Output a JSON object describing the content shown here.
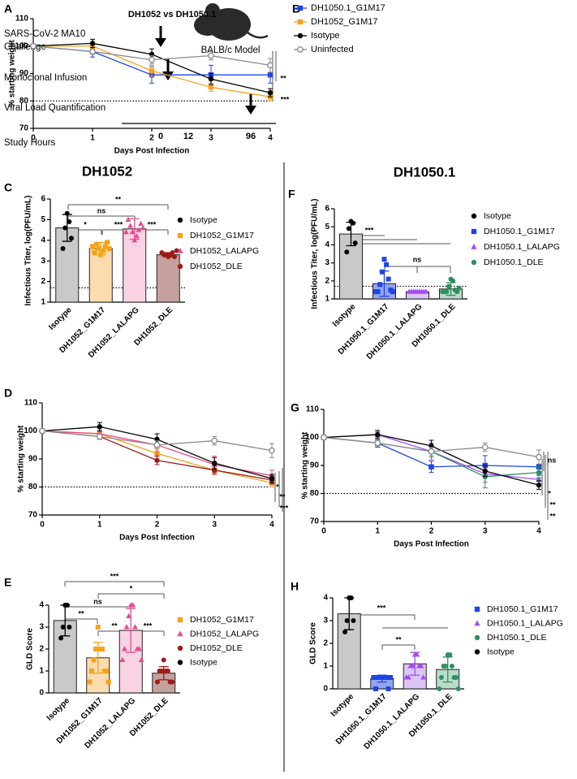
{
  "schematic": {
    "panel_label": "A",
    "challenge": [
      "SARS-CoV-2 MA10",
      "Challenge"
    ],
    "infusion": "Monoclonal Infusion",
    "quantification": "Viral Load Quantification",
    "axis_label": "Study Hours",
    "hours": [
      0,
      12,
      96
    ],
    "model": "BALB/c Model"
  },
  "sections": [
    "DH1052",
    "DH1050.1"
  ],
  "chart_data": [
    {
      "type": "line",
      "panel_label": "B",
      "title": "DH1052 vs DH1050.1",
      "xlabel": "Days Post Infection",
      "ylabel": "% starting weight",
      "x": [
        0,
        1,
        2,
        3,
        4
      ],
      "xlim": [
        0,
        4
      ],
      "xticks": [
        0,
        1,
        2,
        3,
        4
      ],
      "ylim": [
        70,
        110
      ],
      "yticks": [
        70,
        80,
        90,
        100,
        110
      ],
      "reference_line": 80,
      "series": [
        {
          "name": "DH1050.1_G1M17",
          "color": "#1f45e6",
          "marker": "square",
          "values": [
            100,
            98,
            89.5,
            89.5,
            89.5
          ],
          "errors": [
            0,
            2,
            3,
            3.5,
            3
          ]
        },
        {
          "name": "DH1052_G1M17",
          "color": "#f7a21b",
          "marker": "square",
          "values": [
            100,
            100,
            91,
            85,
            81.5
          ],
          "errors": [
            0,
            1,
            2,
            1.5,
            1.5
          ]
        },
        {
          "name": "Isotype",
          "color": "#000000",
          "marker": "circle",
          "values": [
            100,
            101,
            97,
            88,
            83
          ],
          "errors": [
            0,
            1.5,
            2,
            2,
            1.5
          ]
        },
        {
          "name": "Uninfected",
          "color": "#8a8a8a",
          "marker": "open-circle",
          "values": [
            100,
            98,
            95,
            96.5,
            93
          ],
          "errors": [
            0,
            1,
            1.5,
            1.5,
            2.5
          ]
        }
      ],
      "annotations": [
        "**",
        "***"
      ]
    },
    {
      "type": "bar",
      "panel_label": "C",
      "ylabel": "Infectious Titer, log(PFU/mL)",
      "categories": [
        "Isotype",
        "DH1052_G1M17",
        "DH1052_LALAPG",
        "DH1052_DLE"
      ],
      "values": [
        4.6,
        3.6,
        4.55,
        3.3
      ],
      "errors": [
        0.65,
        0.3,
        0.5,
        0.1
      ],
      "points": [
        [
          5.3,
          4.9,
          4.6,
          4.1,
          3.6
        ],
        [
          3.3,
          3.5,
          3.6,
          3.7,
          3.8,
          3.9,
          3.4,
          3.6,
          3.7
        ],
        [
          4.0,
          4.2,
          4.4,
          4.5,
          4.7,
          4.8,
          5.0,
          4.6,
          4.4
        ],
        [
          3.2,
          3.3,
          3.3,
          3.4,
          3.3,
          3.2,
          3.4,
          3.5
        ]
      ],
      "colors": [
        "#000000",
        "#f7a21b",
        "#e84a8f",
        "#9e1b1b"
      ],
      "bar_colors": [
        "#c9c9c9",
        "#fcdcae",
        "#f9d2e3",
        "#c4a09e"
      ],
      "markers": [
        "circle",
        "square",
        "triangle",
        "circle"
      ],
      "ylim": [
        1,
        6
      ],
      "yticks": [
        1,
        2,
        3,
        4,
        5,
        6
      ],
      "reference_line": 1.7,
      "annotations": [
        "**",
        "ns",
        "*",
        "***",
        "***"
      ]
    },
    {
      "type": "line",
      "panel_label": "D",
      "xlabel": "Days Post Infection",
      "ylabel": "% starting weight",
      "x": [
        0,
        1,
        2,
        3,
        4
      ],
      "xlim": [
        0,
        4
      ],
      "xticks": [
        0,
        1,
        2,
        3,
        4
      ],
      "ylim": [
        70,
        110
      ],
      "yticks": [
        70,
        80,
        90,
        100,
        110
      ],
      "reference_line": 80,
      "series": [
        {
          "name": "DH1052_G1M17",
          "color": "#f7a21b",
          "marker": "square",
          "values": [
            100,
            99,
            92,
            86,
            81.5
          ],
          "errors": [
            0,
            1.5,
            2,
            1.5,
            1.5
          ]
        },
        {
          "name": "DH1052_LALAPG",
          "color": "#e84a8f",
          "marker": "triangle",
          "values": [
            100,
            99,
            95,
            88,
            84
          ],
          "errors": [
            0,
            1,
            4,
            3,
            2
          ]
        },
        {
          "name": "DH1052_DLE",
          "color": "#9e1b1b",
          "marker": "circle",
          "values": [
            100,
            98,
            89.5,
            86,
            82.5
          ],
          "errors": [
            0,
            1,
            1.5,
            1.5,
            1.5
          ]
        },
        {
          "name": "Isotype",
          "color": "#000000",
          "marker": "circle",
          "values": [
            100,
            101.5,
            97,
            88.5,
            83
          ],
          "errors": [
            0,
            1.5,
            2,
            2,
            1.5
          ]
        },
        {
          "name": "Uninfected",
          "color": "#8a8a8a",
          "marker": "open-circle",
          "values": [
            100,
            98,
            95,
            96.5,
            93
          ],
          "errors": [
            0,
            1,
            1.5,
            1.5,
            2.5
          ]
        }
      ],
      "annotations": [
        "*",
        "**",
        "***"
      ]
    },
    {
      "type": "bar",
      "panel_label": "E",
      "ylabel": "GLD Score",
      "categories": [
        "Isotype",
        "DH1052_G1M17",
        "DH1052_LALAPG",
        "DH1052_DLE"
      ],
      "values": [
        3.3,
        1.6,
        2.85,
        0.9
      ],
      "errors": [
        0.7,
        0.7,
        1.0,
        0.3
      ],
      "points": [
        [
          4,
          4,
          3,
          3,
          2.5
        ],
        [
          3,
          2,
          2,
          2,
          1.5,
          1,
          1,
          1,
          0.5,
          0.5
        ],
        [
          4,
          4,
          3.5,
          3,
          3,
          2,
          2,
          2,
          1.5,
          1.5
        ],
        [
          1.5,
          1,
          1,
          1,
          1,
          0.5,
          0.5,
          0.5
        ]
      ],
      "colors": [
        "#000000",
        "#f7a21b",
        "#e84a8f",
        "#9e1b1b"
      ],
      "bar_colors": [
        "#c9c9c9",
        "#fcdcae",
        "#f9d2e3",
        "#c4a09e"
      ],
      "markers": [
        "circle",
        "square",
        "triangle",
        "circle"
      ],
      "ylim": [
        0,
        4
      ],
      "yticks": [
        0,
        1,
        2,
        3,
        4
      ],
      "annotations": [
        "***",
        "*",
        "ns",
        "**",
        "**",
        "***"
      ]
    },
    {
      "type": "bar",
      "panel_label": "F",
      "ylabel": "Infectious Titer, log(PFU/mL)",
      "categories": [
        "Isotype",
        "DH1050.1_G1M17",
        "DH1050.1_LALAPG",
        "DH1050.1_DLE"
      ],
      "values": [
        4.6,
        1.85,
        1.4,
        1.55
      ],
      "errors": [
        0.65,
        0.7,
        0.05,
        0.35
      ],
      "points": [
        [
          5.3,
          5.2,
          4.9,
          4.1,
          3.6
        ],
        [
          3.2,
          2.9,
          2.5,
          2.1,
          1.8,
          1.5,
          1.4,
          1.4,
          1.4
        ],
        [
          1.4,
          1.4,
          1.4,
          1.4,
          1.4,
          1.4,
          1.4,
          1.4,
          1.4
        ],
        [
          2.1,
          2.0,
          1.7,
          1.5,
          1.4,
          1.4,
          1.4,
          1.6,
          1.4
        ]
      ],
      "colors": [
        "#000000",
        "#1f45e6",
        "#a44cf0",
        "#2f8f62"
      ],
      "bar_colors": [
        "#c9c9c9",
        "#93a6f2",
        "#dcc6f7",
        "#b8dccb"
      ],
      "markers": [
        "circle",
        "square",
        "triangle",
        "circle"
      ],
      "ylim": [
        1,
        6
      ],
      "yticks": [
        1,
        2,
        3,
        4,
        5,
        6
      ],
      "reference_line": 1.7,
      "annotations": [
        "***",
        "ns"
      ]
    },
    {
      "type": "line",
      "panel_label": "G",
      "xlabel": "Days Post Infection",
      "ylabel": "% starting weight",
      "x": [
        0,
        1,
        2,
        3,
        4
      ],
      "xlim": [
        0,
        4
      ],
      "xticks": [
        0,
        1,
        2,
        3,
        4
      ],
      "ylim": [
        70,
        110
      ],
      "yticks": [
        70,
        80,
        90,
        100,
        110
      ],
      "reference_line": 80,
      "series": [
        {
          "name": "DH1050.1_G1M17",
          "color": "#1f45e6",
          "marker": "square",
          "values": [
            100,
            98,
            89.5,
            90,
            89.5
          ],
          "errors": [
            0,
            1.5,
            2,
            3.5,
            3
          ]
        },
        {
          "name": "DH1050.1_LALAPG",
          "color": "#a44cf0",
          "marker": "triangle",
          "values": [
            100,
            101,
            95,
            87,
            85
          ],
          "errors": [
            0,
            1,
            3,
            3,
            2
          ]
        },
        {
          "name": "DH1050.1_DLE",
          "color": "#2f8f62",
          "marker": "circle",
          "values": [
            100,
            98,
            95,
            86,
            87.5
          ],
          "errors": [
            0,
            1,
            2,
            4,
            2
          ]
        },
        {
          "name": "Isotype",
          "color": "#000000",
          "marker": "circle",
          "values": [
            100,
            101,
            97,
            88,
            83
          ],
          "errors": [
            0,
            1.5,
            2,
            2,
            1.5
          ]
        },
        {
          "name": "Uninfected",
          "color": "#8a8a8a",
          "marker": "open-circle",
          "values": [
            100,
            98,
            95,
            96.5,
            93
          ],
          "errors": [
            0,
            1,
            1.5,
            1.5,
            2.5
          ]
        }
      ],
      "annotations": [
        "ns",
        "*",
        "**",
        "**"
      ]
    },
    {
      "type": "bar",
      "panel_label": "H",
      "ylabel": "GLD Score",
      "categories": [
        "Isotype",
        "DH1050.1_G1M17",
        "DH1050.1_LALAPG",
        "DH1050.1_DLE"
      ],
      "values": [
        3.3,
        0.45,
        1.1,
        0.85
      ],
      "errors": [
        0.7,
        0.15,
        0.5,
        0.55
      ],
      "points": [
        [
          4,
          4,
          3,
          3,
          2.5
        ],
        [
          0.5,
          0.5,
          0.5,
          0.5,
          0.5,
          0,
          0,
          0.5,
          0.5
        ],
        [
          1.5,
          1.5,
          1,
          1,
          1,
          1,
          0.5,
          0.5,
          0.5
        ],
        [
          1.5,
          1.5,
          1,
          1,
          1,
          0.5,
          0.5,
          0.5,
          0,
          0
        ]
      ],
      "colors": [
        "#000000",
        "#1f45e6",
        "#a44cf0",
        "#2f8f62"
      ],
      "bar_colors": [
        "#c9c9c9",
        "#93a6f2",
        "#dcc6f7",
        "#b8dccb"
      ],
      "markers": [
        "circle",
        "square",
        "triangle",
        "circle"
      ],
      "ylim": [
        0,
        4
      ],
      "yticks": [
        0,
        1,
        2,
        3,
        4
      ],
      "annotations": [
        "***",
        "**"
      ]
    }
  ]
}
